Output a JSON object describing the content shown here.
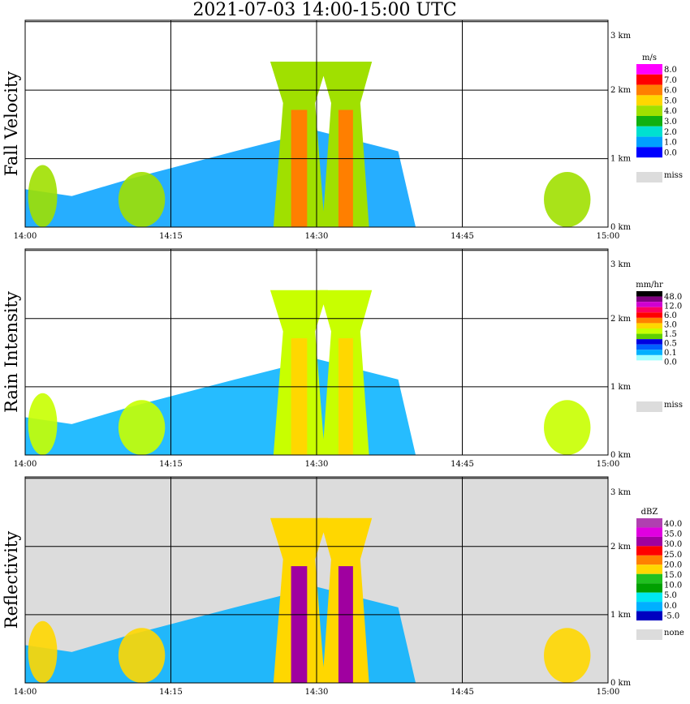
{
  "title": "2021-07-03   14:00-15:00 UTC",
  "chart_data": [
    {
      "type": "heatmap",
      "name": "Fall Velocity",
      "ylabel": "Fall Velocity",
      "x_ticks": [
        "14:00",
        "14:15",
        "14:30",
        "14:45",
        "15:00"
      ],
      "y_ticks": [
        "0 km",
        "1 km",
        "2 km",
        "3 km"
      ],
      "xlim": [
        "14:00",
        "15:00"
      ],
      "ylim_km": [
        0,
        3.0
      ],
      "grid": true,
      "background": "#ffffff",
      "legend": {
        "unit": "m/s",
        "labels": [
          "8.0",
          "7.0",
          "6.0",
          "5.0",
          "4.0",
          "3.0",
          "2.0",
          "1.0",
          "0.0"
        ],
        "colors": [
          "#ff00ff",
          "#ff0000",
          "#ff7f00",
          "#ffd700",
          "#a0e000",
          "#10b010",
          "#00e0d0",
          "#00a0ff",
          "#0000ff"
        ],
        "missing_label": "miss",
        "missing_color": "#dcdcdc"
      }
    },
    {
      "type": "heatmap",
      "name": "Rain Intensity",
      "ylabel": "Rain Intensity",
      "x_ticks": [
        "14:00",
        "14:15",
        "14:30",
        "14:45",
        "15:00"
      ],
      "y_ticks": [
        "0 km",
        "1 km",
        "2 km",
        "3 km"
      ],
      "xlim": [
        "14:00",
        "15:00"
      ],
      "ylim_km": [
        0,
        3.0
      ],
      "grid": true,
      "background": "#ffffff",
      "legend": {
        "unit": "mm/hr",
        "labels": [
          "48.0",
          "12.0",
          "6.0",
          "3.0",
          "1.5",
          "0.5",
          "0.1",
          "0.0"
        ],
        "colors": [
          "#000000",
          "#800080",
          "#d000d0",
          "#ff0060",
          "#ff0000",
          "#ff8000",
          "#ffd700",
          "#c8ff00",
          "#60d000",
          "#0000e0",
          "#0060ff",
          "#00b0ff",
          "#a0ffff",
          "#ffffff"
        ],
        "missing_label": "miss",
        "missing_color": "#dcdcdc"
      }
    },
    {
      "type": "heatmap",
      "name": "Reflectivity",
      "ylabel": "Reflectivity",
      "x_ticks": [
        "14:00",
        "14:15",
        "14:30",
        "14:45",
        "15:00"
      ],
      "y_ticks": [
        "0 km",
        "1 km",
        "2 km",
        "3 km"
      ],
      "xlim": [
        "14:00",
        "15:00"
      ],
      "ylim_km": [
        0,
        3.0
      ],
      "grid": true,
      "background": "#dcdcdc",
      "legend": {
        "unit": "dBZ",
        "labels": [
          "40.0",
          "35.0",
          "30.0",
          "25.0",
          "20.0",
          "15.0",
          "10.0",
          "5.0",
          "0.0",
          "-5.0"
        ],
        "colors": [
          "#b040b0",
          "#e000e0",
          "#a000a0",
          "#ff0000",
          "#ff8000",
          "#ffd700",
          "#20c020",
          "#00a000",
          "#00e8f0",
          "#00b0ff",
          "#0000c0"
        ],
        "missing_label": "none",
        "missing_color": "#dcdcdc"
      }
    }
  ]
}
